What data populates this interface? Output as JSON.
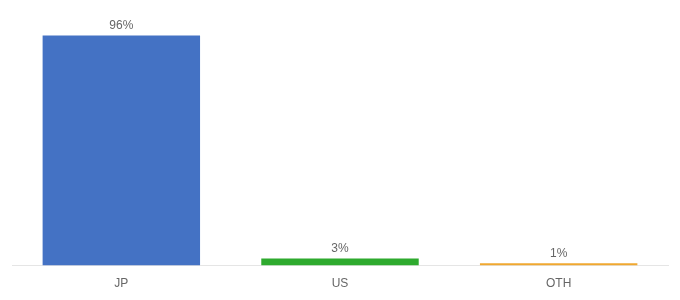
{
  "chart_data": {
    "type": "bar",
    "categories": [
      "JP",
      "US",
      "OTH"
    ],
    "values": [
      96,
      3,
      1
    ],
    "value_labels": [
      "96%",
      "3%",
      "1%"
    ],
    "colors": [
      "#4472c4",
      "#2eaa2e",
      "#f0a830"
    ],
    "ylim": [
      0,
      100
    ],
    "grid": false,
    "data_labels": true,
    "tick_labels": "x"
  }
}
